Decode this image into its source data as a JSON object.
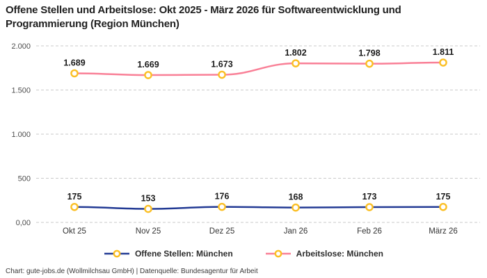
{
  "header": {
    "title_lines": [
      "Offene Stellen und Arbeitslose: Okt 2025 - März 2026 für Softwareentwicklung und",
      "Programmierung (Region München)"
    ]
  },
  "chart_data": {
    "type": "line",
    "title": "Offene Stellen und Arbeitslose: Okt 2025 - März 2026 für Softwareentwicklung und Programmierung (Region München)",
    "categories": [
      "Okt 25",
      "Nov 25",
      "Dez 25",
      "Jan 26",
      "Feb 26",
      "März 26"
    ],
    "series": [
      {
        "name": "Offene Stellen: München",
        "color": "#223a94",
        "values": [
          175,
          153,
          176,
          168,
          173,
          175
        ],
        "labels": [
          "175",
          "153",
          "176",
          "168",
          "173",
          "175"
        ]
      },
      {
        "name": "Arbeitslose: München",
        "color": "#f97f96",
        "values": [
          1689,
          1669,
          1673,
          1802,
          1798,
          1811
        ],
        "labels": [
          "1.689",
          "1.669",
          "1.673",
          "1.802",
          "1.798",
          "1.811"
        ]
      }
    ],
    "y_ticks": [
      {
        "value": 0,
        "label": "0,00"
      },
      {
        "value": 500,
        "label": "500"
      },
      {
        "value": 1000,
        "label": "1.000"
      },
      {
        "value": 1500,
        "label": "1.500"
      },
      {
        "value": 2000,
        "label": "2.000"
      }
    ],
    "ylim": [
      0,
      2000
    ],
    "marker_color": "#fbbf24",
    "grid_color": "#c9c9c9",
    "grid": "dashed-horizontal",
    "legend_position": "bottom"
  },
  "footer": {
    "text": "Chart: gute-jobs.de (Wollmilchsau GmbH) | Datenquelle: Bundesagentur für Arbeit"
  }
}
